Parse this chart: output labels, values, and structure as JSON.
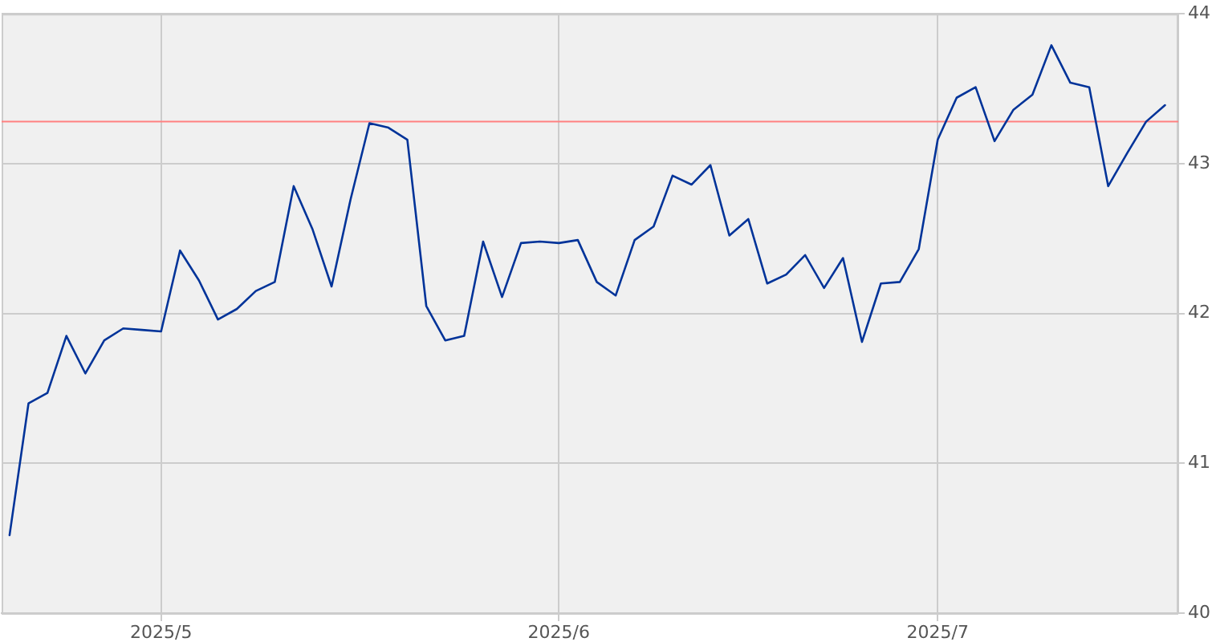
{
  "chart_data": {
    "type": "line",
    "categories": [
      null,
      null,
      null,
      null,
      null,
      null,
      null,
      null,
      "2025/5",
      null,
      null,
      null,
      null,
      null,
      null,
      null,
      null,
      null,
      null,
      null,
      null,
      null,
      null,
      null,
      null,
      null,
      null,
      null,
      null,
      "2025/6",
      null,
      null,
      null,
      null,
      null,
      null,
      null,
      null,
      null,
      null,
      null,
      null,
      null,
      null,
      null,
      null,
      null,
      null,
      null,
      "2025/7",
      null,
      null,
      null,
      null,
      null,
      null,
      null,
      null,
      null,
      null,
      null,
      null
    ],
    "series": [
      {
        "color": "#003399",
        "values": [
          40.52,
          41.4,
          41.47,
          41.85,
          41.6,
          41.82,
          41.9,
          41.89,
          41.88,
          42.42,
          42.22,
          41.96,
          42.03,
          42.15,
          42.21,
          42.85,
          42.56,
          42.18,
          42.76,
          43.27,
          43.24,
          43.16,
          42.05,
          41.82,
          41.85,
          42.48,
          42.11,
          42.47,
          42.48,
          42.47,
          42.49,
          42.21,
          42.12,
          42.49,
          42.58,
          42.92,
          42.86,
          42.99,
          42.52,
          42.63,
          42.2,
          42.26,
          42.39,
          42.17,
          42.37,
          41.81,
          42.2,
          42.21,
          42.43,
          43.16,
          43.44,
          43.51,
          43.15,
          43.36,
          43.46,
          43.79,
          43.54,
          43.51,
          42.85,
          43.07,
          43.28,
          43.39
        ]
      }
    ],
    "ylim": [
      40,
      44
    ],
    "yticks": [
      40,
      41,
      42,
      43,
      44
    ],
    "ref_lines": [
      {
        "axis": "y",
        "value": 43.28,
        "color": "#ff8080"
      }
    ],
    "grid": true,
    "marker": "none",
    "line_style": "solid"
  }
}
